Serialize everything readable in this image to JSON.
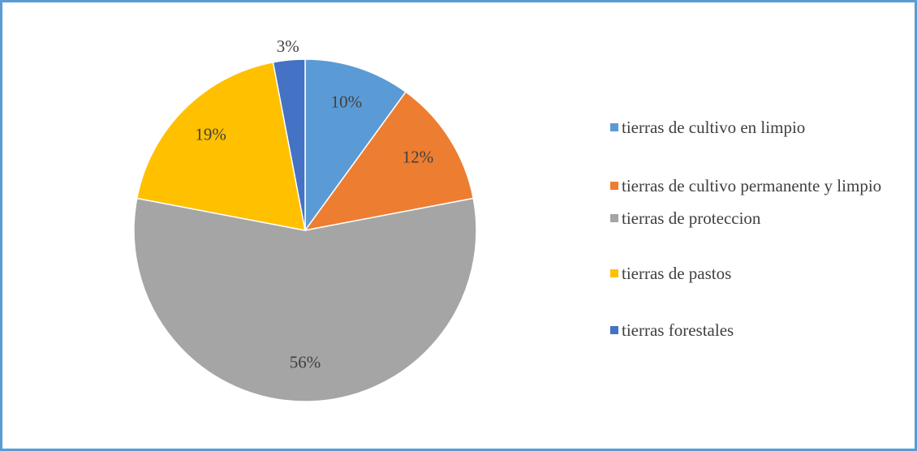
{
  "chart_data": {
    "type": "pie",
    "categories": [
      "tierras de cultivo en limpio",
      "tierras de cultivo permanente y limpio",
      "tierras de proteccion",
      "tierras de pastos",
      "tierras forestales"
    ],
    "values": [
      10,
      12,
      56,
      19,
      3
    ],
    "value_labels": [
      "10%",
      "12%",
      "56%",
      "19%",
      "3%"
    ],
    "colors": [
      "#5b9bd5",
      "#ed7d31",
      "#a5a5a5",
      "#ffc000",
      "#4472c4"
    ],
    "legend": "right"
  }
}
